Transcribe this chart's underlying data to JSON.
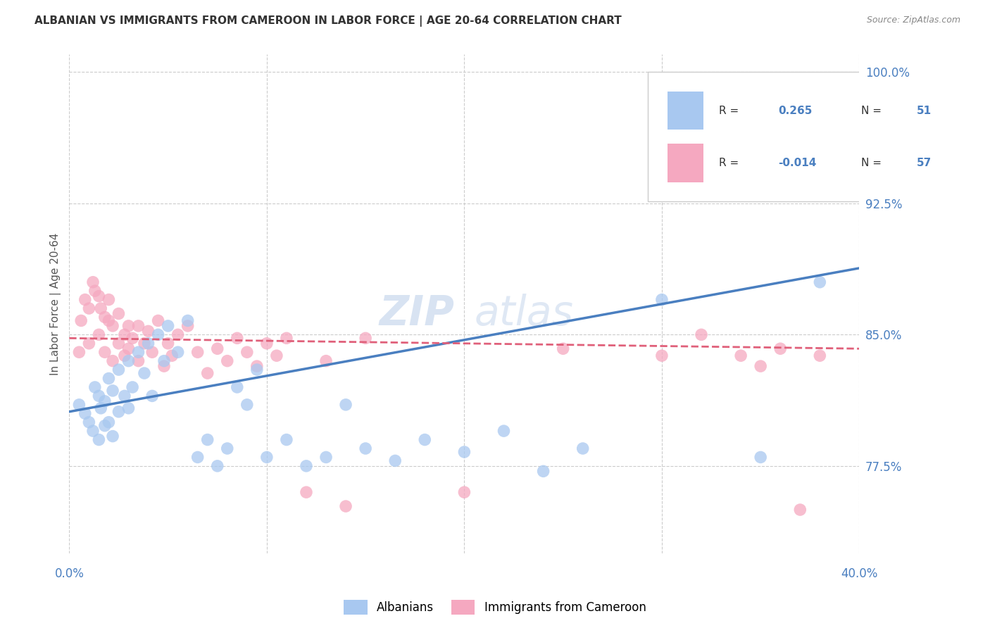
{
  "title": "ALBANIAN VS IMMIGRANTS FROM CAMEROON IN LABOR FORCE | AGE 20-64 CORRELATION CHART",
  "source": "Source: ZipAtlas.com",
  "legend_label1": "Albanians",
  "legend_label2": "Immigrants from Cameroon",
  "R1": 0.265,
  "N1": 51,
  "R2": -0.014,
  "N2": 57,
  "color_blue": "#A8C8F0",
  "color_pink": "#F5A8C0",
  "color_blue_dark": "#4A7FC0",
  "color_pink_dark": "#E0607A",
  "color_blue_text": "#4A7FC0",
  "color_right_axis": "#4A7FC0",
  "watermark_color": "#C8D8F0",
  "xlim": [
    0.0,
    0.4
  ],
  "ylim": [
    0.725,
    1.01
  ],
  "yticks": [
    0.775,
    0.85,
    0.925,
    1.0
  ],
  "ytick_labels": [
    "77.5%",
    "85.0%",
    "92.5%",
    "100.0%"
  ],
  "blue_scatter_x": [
    0.005,
    0.008,
    0.01,
    0.012,
    0.013,
    0.015,
    0.015,
    0.016,
    0.018,
    0.018,
    0.02,
    0.02,
    0.022,
    0.022,
    0.025,
    0.025,
    0.028,
    0.03,
    0.03,
    0.032,
    0.035,
    0.038,
    0.04,
    0.042,
    0.045,
    0.048,
    0.05,
    0.055,
    0.06,
    0.065,
    0.07,
    0.075,
    0.08,
    0.085,
    0.09,
    0.095,
    0.1,
    0.11,
    0.12,
    0.13,
    0.14,
    0.15,
    0.165,
    0.18,
    0.2,
    0.22,
    0.24,
    0.26,
    0.3,
    0.35,
    0.38
  ],
  "blue_scatter_y": [
    0.81,
    0.805,
    0.8,
    0.795,
    0.82,
    0.815,
    0.79,
    0.808,
    0.812,
    0.798,
    0.825,
    0.8,
    0.818,
    0.792,
    0.83,
    0.806,
    0.815,
    0.835,
    0.808,
    0.82,
    0.84,
    0.828,
    0.845,
    0.815,
    0.85,
    0.835,
    0.855,
    0.84,
    0.858,
    0.78,
    0.79,
    0.775,
    0.785,
    0.82,
    0.81,
    0.83,
    0.78,
    0.79,
    0.775,
    0.78,
    0.81,
    0.785,
    0.778,
    0.79,
    0.783,
    0.795,
    0.772,
    0.785,
    0.87,
    0.78,
    0.88
  ],
  "pink_scatter_x": [
    0.005,
    0.006,
    0.008,
    0.01,
    0.01,
    0.012,
    0.013,
    0.015,
    0.015,
    0.016,
    0.018,
    0.018,
    0.02,
    0.02,
    0.022,
    0.022,
    0.025,
    0.025,
    0.028,
    0.028,
    0.03,
    0.03,
    0.032,
    0.035,
    0.035,
    0.038,
    0.04,
    0.042,
    0.045,
    0.048,
    0.05,
    0.052,
    0.055,
    0.06,
    0.065,
    0.07,
    0.075,
    0.08,
    0.085,
    0.09,
    0.095,
    0.1,
    0.105,
    0.11,
    0.12,
    0.13,
    0.14,
    0.15,
    0.2,
    0.25,
    0.3,
    0.32,
    0.34,
    0.35,
    0.36,
    0.37,
    0.38
  ],
  "pink_scatter_y": [
    0.84,
    0.858,
    0.87,
    0.865,
    0.845,
    0.88,
    0.875,
    0.872,
    0.85,
    0.865,
    0.86,
    0.84,
    0.858,
    0.87,
    0.855,
    0.835,
    0.862,
    0.845,
    0.85,
    0.838,
    0.855,
    0.842,
    0.848,
    0.855,
    0.835,
    0.845,
    0.852,
    0.84,
    0.858,
    0.832,
    0.845,
    0.838,
    0.85,
    0.855,
    0.84,
    0.828,
    0.842,
    0.835,
    0.848,
    0.84,
    0.832,
    0.845,
    0.838,
    0.848,
    0.76,
    0.835,
    0.752,
    0.848,
    0.76,
    0.842,
    0.838,
    0.85,
    0.838,
    0.832,
    0.842,
    0.75,
    0.838
  ],
  "blue_trend_x": [
    0.0,
    0.4
  ],
  "blue_trend_y": [
    0.806,
    0.888
  ],
  "pink_trend_x": [
    0.0,
    0.4
  ],
  "pink_trend_y": [
    0.848,
    0.842
  ],
  "background_color": "#FFFFFF",
  "grid_color": "#CCCCCC",
  "figsize": [
    14.06,
    8.92
  ],
  "dpi": 100
}
